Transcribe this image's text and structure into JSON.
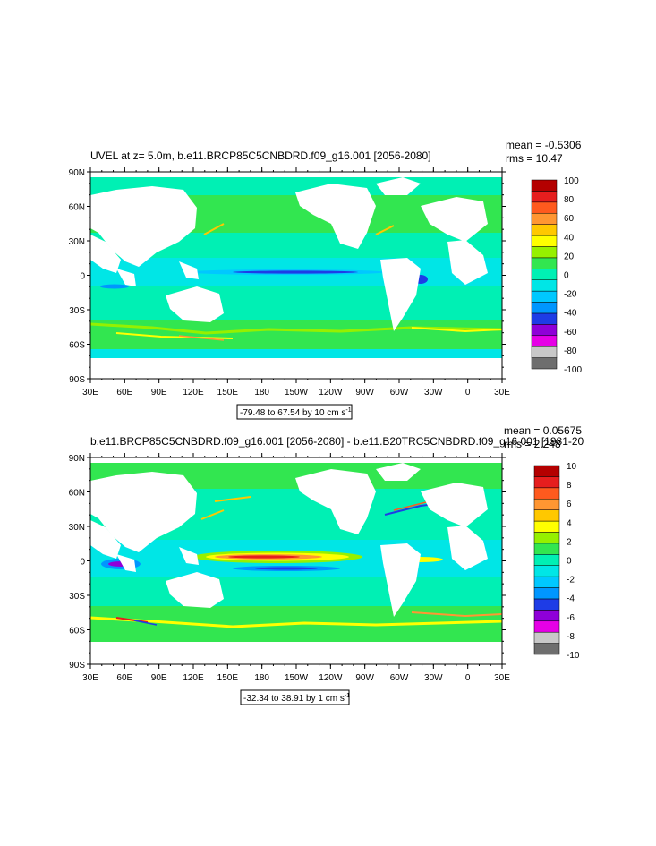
{
  "panels": [
    {
      "title": "UVEL at z=   5.0m, b.e11.BRCP85C5CNBDRD.f09_g16.001 [2056-2080]",
      "mean": "mean = -0.5306",
      "rms": "rms = 10.47",
      "range_text": "-79.48 to 67.54 by 10 cm s",
      "range_sup": "-1",
      "colorbar_labels": [
        "100",
        "80",
        "60",
        "40",
        "20",
        "0",
        "-20",
        "-40",
        "-60",
        "-80",
        "-100"
      ]
    },
    {
      "title": "b.e11.BRCP85C5CNBDRD.f09_g16.001 [2056-2080] - b.e11.B20TRC5CNBDRD.f09_g16.001 [1981-20",
      "mean": "mean = 0.05675",
      "rms": "rms = 2.248",
      "range_text": "-32.34 to 38.91 by 1 cm s",
      "range_sup": "-1",
      "colorbar_labels": [
        "10",
        "8",
        "6",
        "4",
        "2",
        "0",
        "-2",
        "-4",
        "-6",
        "-8",
        "-10"
      ]
    }
  ],
  "axes": {
    "lat_labels": [
      "90N",
      "60N",
      "30N",
      "0",
      "30S",
      "60S",
      "90S"
    ],
    "lon_labels": [
      "30E",
      "60E",
      "90E",
      "120E",
      "150E",
      "180",
      "150W",
      "120W",
      "90W",
      "60W",
      "30W",
      "0",
      "30E"
    ]
  },
  "colors": {
    "palette": [
      "#6e6e6e",
      "#c8c8c8",
      "#e600e6",
      "#8f00d8",
      "#1e3ce6",
      "#0096ff",
      "#00c8ff",
      "#00e6e6",
      "#00f0b4",
      "#32e650",
      "#96f000",
      "#ffff00",
      "#ffc800",
      "#ff9632",
      "#ff5a1e",
      "#e61e1e",
      "#b40000"
    ],
    "land": "#ffffff"
  },
  "chart_data": [
    {
      "type": "heatmap",
      "title": "UVEL at z=   5.0m, b.e11.BRCP85C5CNBDRD.f09_g16.001 [2056-2080]",
      "xlabel": "",
      "ylabel": "",
      "x_ticks": [
        "30E",
        "60E",
        "90E",
        "120E",
        "150E",
        "180",
        "150W",
        "120W",
        "90W",
        "60W",
        "30W",
        "0",
        "30E"
      ],
      "y_ticks": [
        "90N",
        "60N",
        "30N",
        "0",
        "30S",
        "60S",
        "90S"
      ],
      "xlim": [
        30,
        390
      ],
      "ylim": [
        -90,
        90
      ],
      "colorbar_levels": [
        100,
        80,
        60,
        40,
        20,
        0,
        -20,
        -40,
        -60,
        -80,
        -100
      ],
      "units": "cm s-1",
      "range": [
        -79.48,
        67.54
      ],
      "contour_interval": 10,
      "mean": -0.5306,
      "rms": 10.47
    },
    {
      "type": "heatmap",
      "title": "b.e11.BRCP85C5CNBDRD.f09_g16.001 [2056-2080] - b.e11.B20TRC5CNBDRD.f09_g16.001 [1981-20",
      "xlabel": "",
      "ylabel": "",
      "x_ticks": [
        "30E",
        "60E",
        "90E",
        "120E",
        "150E",
        "180",
        "150W",
        "120W",
        "90W",
        "60W",
        "30W",
        "0",
        "30E"
      ],
      "y_ticks": [
        "90N",
        "60N",
        "30N",
        "0",
        "30S",
        "60S",
        "90S"
      ],
      "xlim": [
        30,
        390
      ],
      "ylim": [
        -90,
        90
      ],
      "colorbar_levels": [
        10,
        8,
        6,
        4,
        2,
        0,
        -2,
        -4,
        -6,
        -8,
        -10
      ],
      "units": "cm s-1",
      "range": [
        -32.34,
        38.91
      ],
      "contour_interval": 1,
      "mean": 0.05675,
      "rms": 2.248
    }
  ]
}
